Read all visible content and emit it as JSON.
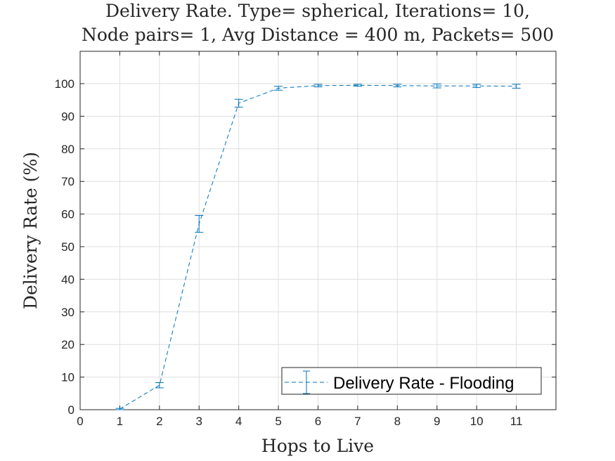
{
  "chart_data": {
    "type": "line",
    "title_lines": [
      "Delivery Rate. Type= spherical, Iterations= 10,",
      "Node pairs= 1, Avg Distance = 400 m, Packets= 500"
    ],
    "xlabel": "Hops to Live",
    "ylabel": "Delivery Rate (%)",
    "xlim": [
      0,
      12
    ],
    "ylim": [
      0,
      100
    ],
    "xticks": [
      0,
      1,
      2,
      3,
      4,
      5,
      6,
      7,
      8,
      9,
      10,
      11
    ],
    "yticks": [
      0,
      10,
      20,
      30,
      40,
      50,
      60,
      70,
      80,
      90,
      100
    ],
    "grid": true,
    "legend_position": "bottom-right",
    "series": [
      {
        "name": "Delivery Rate - Flooding",
        "color": "#0072BD",
        "line_style": "dashed",
        "error_bars": true,
        "x": [
          1,
          2,
          3,
          4,
          5,
          6,
          7,
          8,
          9,
          10,
          11
        ],
        "y": [
          0.2,
          7.5,
          57.0,
          94.0,
          98.6,
          99.4,
          99.5,
          99.4,
          99.3,
          99.3,
          99.2
        ],
        "err": [
          0.2,
          0.8,
          2.6,
          1.2,
          0.6,
          0.4,
          0.3,
          0.4,
          0.6,
          0.5,
          0.6
        ]
      }
    ]
  }
}
